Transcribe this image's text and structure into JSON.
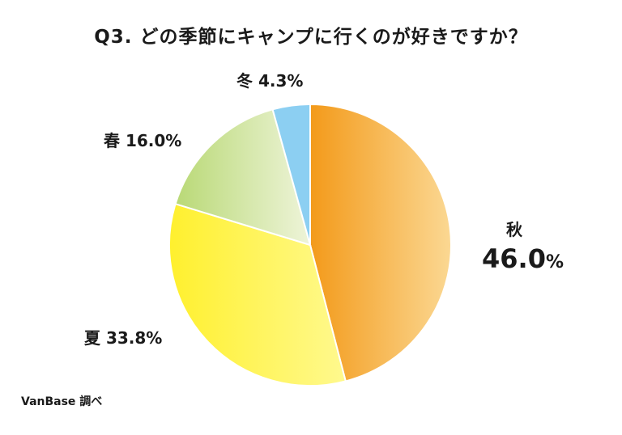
{
  "chart_data": {
    "type": "pie",
    "title": "Q3. どの季節にキャンプに行くのが好きですか？",
    "slices": [
      {
        "label": "秋",
        "value": 46.0,
        "display": "46.0%",
        "color_start": "#F39A1A",
        "color_end": "#FBD893"
      },
      {
        "label": "夏",
        "value": 33.8,
        "display": "33.8%",
        "color_start": "#FFF02E",
        "color_end": "#FFF98E"
      },
      {
        "label": "春",
        "value": 16.0,
        "display": "16.0%",
        "color_start": "#B9D976",
        "color_end": "#EEF4D9"
      },
      {
        "label": "冬",
        "value": 4.3,
        "display": "4.3%",
        "color_start": "#8CCFF2",
        "color_end": "#8CCFF2"
      }
    ]
  },
  "labels": {
    "autumn_name": "秋",
    "autumn_pct": "46.0",
    "autumn_unit": "%",
    "summer": "夏 33.8%",
    "spring": "春 16.0%",
    "winter": "冬 4.3%"
  },
  "source": "VanBase 調べ"
}
